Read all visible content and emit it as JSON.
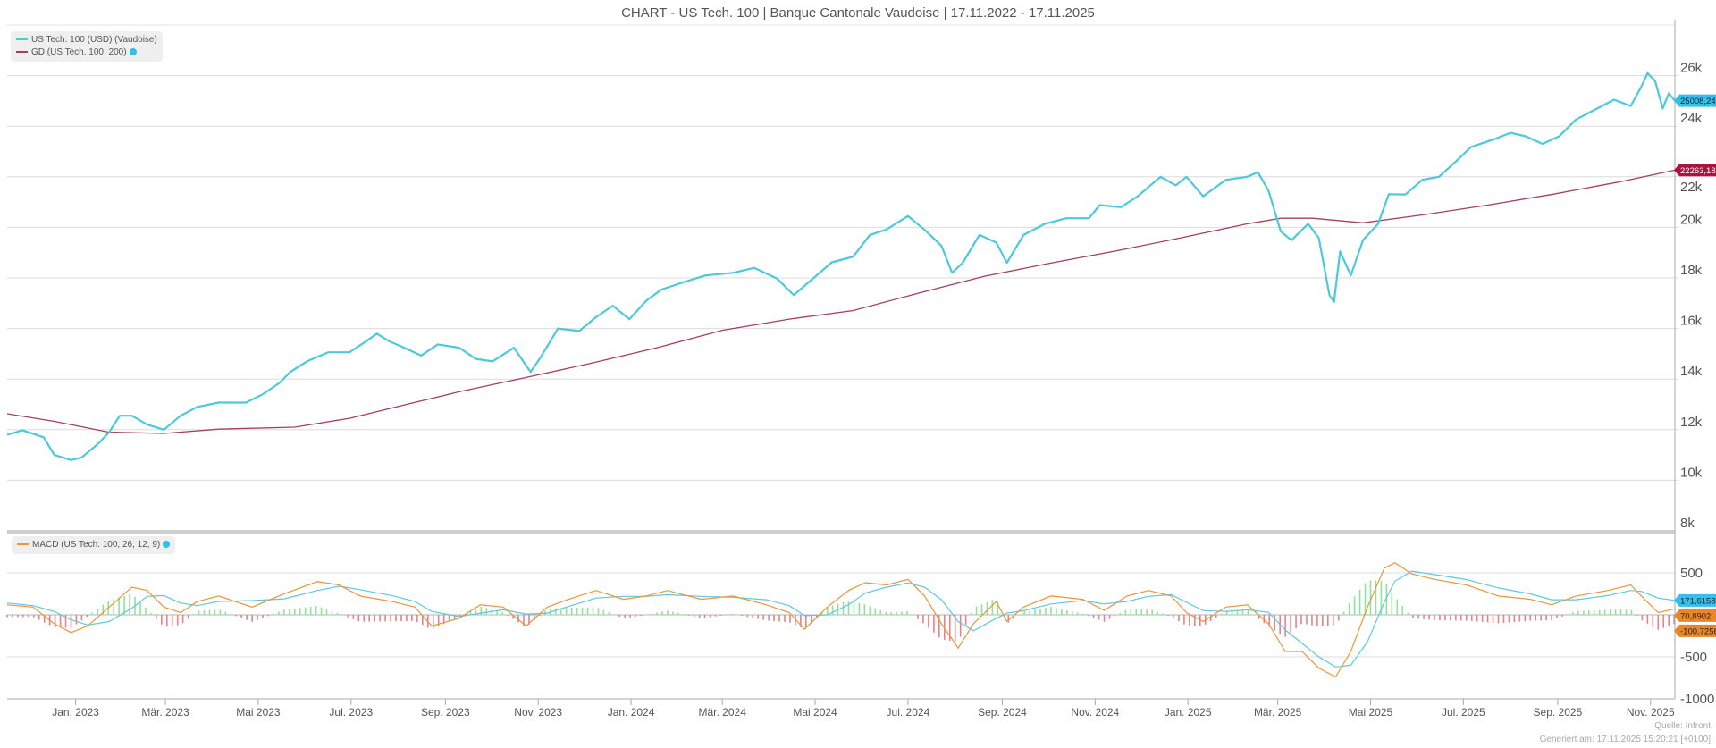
{
  "title": "CHART - US Tech. 100 | Banque Cantonale Vaudoise | 17.11.2022 - 17.11.2025",
  "legend_main": [
    {
      "label": "US Tech. 100 (USD) (Vaudoise)",
      "color": "#4cc9da"
    },
    {
      "label": "GD (US Tech. 100, 200)",
      "color": "#a3405f"
    }
  ],
  "legend_macd": {
    "label": "MACD (US Tech. 100, 26, 12, 9)",
    "color": "#e8963a"
  },
  "footer": {
    "source": "Quelle: Infront",
    "generated": "Generiert am: 17.11.2025 15:20:21 [+0100]"
  },
  "colors": {
    "price": "#4cc9da",
    "gd": "#a3405f",
    "macd": "#e8963a",
    "signal": "#5ec9de",
    "hist_pos": "#8fe39a",
    "hist_neg": "#e3838b",
    "tag_blue": "#36bfe8",
    "tag_red": "#a8153f",
    "tag_orange": "#e8862a",
    "grid": "#dcdcdc"
  },
  "chart_data": [
    {
      "type": "line",
      "title": "CHART - US Tech. 100 | Banque Cantonale Vaudoise | 17.11.2022 - 17.11.2025",
      "xlim": [
        "2022-11-17",
        "2025-11-17"
      ],
      "ylim": [
        8000,
        28000
      ],
      "grid": true,
      "legend": "top-left",
      "yticks": [
        8000,
        10000,
        12000,
        14000,
        16000,
        18000,
        20000,
        22000,
        24000,
        26000
      ],
      "ytick_labels": [
        "8k",
        "10k",
        "12k",
        "14k",
        "16k",
        "18k",
        "20k",
        "22k",
        "24k",
        "26k"
      ],
      "xticks": [
        "2023-01-01",
        "2023-03-01",
        "2023-05-01",
        "2023-07-01",
        "2023-09-01",
        "2023-11-01",
        "2024-01-01",
        "2024-03-01",
        "2024-05-01",
        "2024-07-01",
        "2024-09-01",
        "2024-11-01",
        "2025-01-01",
        "2025-03-01",
        "2025-05-01",
        "2025-07-01",
        "2025-09-01",
        "2025-11-01"
      ],
      "xtick_labels": [
        "Jan. 2023",
        "Mär. 2023",
        "Mai 2023",
        "Jul. 2023",
        "Sep. 2023",
        "Nov. 2023",
        "Jan. 2024",
        "Mär. 2024",
        "Mai 2024",
        "Jul. 2024",
        "Sep. 2024",
        "Nov. 2024",
        "Jan. 2025",
        "Mär. 2025",
        "Mai 2025",
        "Jul. 2025",
        "Sep. 2025",
        "Nov. 2025"
      ],
      "series": [
        {
          "name": "US Tech. 100 (USD) (Vaudoise)",
          "last_label": "25008,24",
          "points": [
            [
              "2022-11-17",
              11800
            ],
            [
              "2022-11-27",
              11980
            ],
            [
              "2022-12-11",
              11700
            ],
            [
              "2022-12-18",
              11000
            ],
            [
              "2022-12-29",
              10800
            ],
            [
              "2023-01-05",
              10900
            ],
            [
              "2023-01-16",
              11460
            ],
            [
              "2023-01-23",
              11900
            ],
            [
              "2023-01-30",
              12550
            ],
            [
              "2023-02-07",
              12550
            ],
            [
              "2023-02-17",
              12200
            ],
            [
              "2023-02-28",
              12000
            ],
            [
              "2023-03-11",
              12550
            ],
            [
              "2023-03-22",
              12900
            ],
            [
              "2023-04-05",
              13070
            ],
            [
              "2023-04-23",
              13070
            ],
            [
              "2023-05-04",
              13400
            ],
            [
              "2023-05-15",
              13850
            ],
            [
              "2023-05-22",
              14280
            ],
            [
              "2023-06-02",
              14700
            ],
            [
              "2023-06-16",
              15060
            ],
            [
              "2023-06-30",
              15060
            ],
            [
              "2023-07-11",
              15500
            ],
            [
              "2023-07-18",
              15800
            ],
            [
              "2023-07-26",
              15500
            ],
            [
              "2023-08-05",
              15240
            ],
            [
              "2023-08-16",
              14930
            ],
            [
              "2023-08-27",
              15370
            ],
            [
              "2023-09-10",
              15240
            ],
            [
              "2023-09-21",
              14800
            ],
            [
              "2023-10-02",
              14700
            ],
            [
              "2023-10-16",
              15240
            ],
            [
              "2023-10-27",
              14280
            ],
            [
              "2023-11-03",
              14900
            ],
            [
              "2023-11-14",
              16000
            ],
            [
              "2023-11-28",
              15900
            ],
            [
              "2023-12-09",
              16450
            ],
            [
              "2023-12-20",
              16900
            ],
            [
              "2023-12-31",
              16370
            ],
            [
              "2024-01-11",
              17100
            ],
            [
              "2024-01-21",
              17540
            ],
            [
              "2024-02-05",
              17840
            ],
            [
              "2024-02-19",
              18100
            ],
            [
              "2024-03-08",
              18200
            ],
            [
              "2024-03-22",
              18400
            ],
            [
              "2024-04-06",
              17970
            ],
            [
              "2024-04-17",
              17320
            ],
            [
              "2024-04-27",
              17840
            ],
            [
              "2024-05-12",
              18620
            ],
            [
              "2024-05-26",
              18840
            ],
            [
              "2024-06-06",
              19700
            ],
            [
              "2024-06-17",
              19920
            ],
            [
              "2024-07-01",
              20450
            ],
            [
              "2024-07-12",
              19900
            ],
            [
              "2024-07-23",
              19270
            ],
            [
              "2024-07-30",
              18200
            ],
            [
              "2024-08-06",
              18600
            ],
            [
              "2024-08-17",
              19700
            ],
            [
              "2024-08-28",
              19400
            ],
            [
              "2024-09-04",
              18600
            ],
            [
              "2024-09-15",
              19700
            ],
            [
              "2024-09-29",
              20140
            ],
            [
              "2024-10-13",
              20360
            ],
            [
              "2024-10-28",
              20360
            ],
            [
              "2024-11-04",
              20880
            ],
            [
              "2024-11-18",
              20800
            ],
            [
              "2024-11-29",
              21230
            ],
            [
              "2024-12-14",
              22000
            ],
            [
              "2024-12-24",
              21660
            ],
            [
              "2024-12-31",
              22000
            ],
            [
              "2025-01-11",
              21230
            ],
            [
              "2025-01-26",
              21880
            ],
            [
              "2025-02-09",
              22000
            ],
            [
              "2025-02-16",
              22180
            ],
            [
              "2025-02-23",
              21440
            ],
            [
              "2025-03-03",
              19840
            ],
            [
              "2025-03-10",
              19490
            ],
            [
              "2025-03-21",
              20140
            ],
            [
              "2025-03-28",
              19580
            ],
            [
              "2025-04-04",
              17320
            ],
            [
              "2025-04-07",
              17050
            ],
            [
              "2025-04-11",
              19050
            ],
            [
              "2025-04-18",
              18100
            ],
            [
              "2025-04-26",
              19490
            ],
            [
              "2025-05-06",
              20140
            ],
            [
              "2025-05-13",
              21310
            ],
            [
              "2025-05-24",
              21300
            ],
            [
              "2025-06-04",
              21880
            ],
            [
              "2025-06-15",
              22000
            ],
            [
              "2025-06-26",
              22600
            ],
            [
              "2025-07-06",
              23180
            ],
            [
              "2025-07-21",
              23480
            ],
            [
              "2025-08-01",
              23740
            ],
            [
              "2025-08-11",
              23600
            ],
            [
              "2025-08-22",
              23300
            ],
            [
              "2025-09-02",
              23600
            ],
            [
              "2025-09-13",
              24260
            ],
            [
              "2025-09-27",
              24700
            ],
            [
              "2025-10-08",
              25050
            ],
            [
              "2025-10-19",
              24800
            ],
            [
              "2025-10-26",
              25570
            ],
            [
              "2025-10-30",
              26100
            ],
            [
              "2025-11-04",
              25780
            ],
            [
              "2025-11-09",
              24700
            ],
            [
              "2025-11-13",
              25300
            ],
            [
              "2025-11-17",
              25008.24
            ]
          ]
        },
        {
          "name": "GD (US Tech. 100, 200)",
          "last_label": "22263,18",
          "points": [
            [
              "2022-11-17",
              12630
            ],
            [
              "2022-12-18",
              12330
            ],
            [
              "2023-01-23",
              11900
            ],
            [
              "2023-02-28",
              11850
            ],
            [
              "2023-04-05",
              12020
            ],
            [
              "2023-05-25",
              12100
            ],
            [
              "2023-06-30",
              12450
            ],
            [
              "2023-08-05",
              12980
            ],
            [
              "2023-09-10",
              13500
            ],
            [
              "2023-10-24",
              14065
            ],
            [
              "2023-12-06",
              14630
            ],
            [
              "2024-01-18",
              15240
            ],
            [
              "2024-03-01",
              15930
            ],
            [
              "2024-04-14",
              16370
            ],
            [
              "2024-05-26",
              16710
            ],
            [
              "2024-07-08",
              17400
            ],
            [
              "2024-08-20",
              18060
            ],
            [
              "2024-10-02",
              18580
            ],
            [
              "2024-11-14",
              19060
            ],
            [
              "2024-12-27",
              19580
            ],
            [
              "2025-02-09",
              20140
            ],
            [
              "2025-03-03",
              20360
            ],
            [
              "2025-03-24",
              20360
            ],
            [
              "2025-04-26",
              20180
            ],
            [
              "2025-06-04",
              20490
            ],
            [
              "2025-07-17",
              20880
            ],
            [
              "2025-08-29",
              21310
            ],
            [
              "2025-10-11",
              21790
            ],
            [
              "2025-11-17",
              22263.18
            ]
          ]
        }
      ]
    },
    {
      "type": "line",
      "xlim": [
        "2022-11-17",
        "2025-11-17"
      ],
      "ylim": [
        -1000,
        936
      ],
      "grid": true,
      "legend": "top-left",
      "yticks": [
        -1000,
        -500,
        500
      ],
      "ytick_labels": [
        "-1000",
        "-500",
        "500"
      ],
      "dates": [
        "2022-11-17",
        "2022-12-04",
        "2022-12-18",
        "2022-12-29",
        "2023-01-09",
        "2023-01-23",
        "2023-02-07",
        "2023-02-17",
        "2023-02-28",
        "2023-03-11",
        "2023-03-22",
        "2023-04-05",
        "2023-04-27",
        "2023-05-18",
        "2023-06-09",
        "2023-06-23",
        "2023-07-07",
        "2023-07-28",
        "2023-08-12",
        "2023-08-23",
        "2023-09-10",
        "2023-09-24",
        "2023-10-09",
        "2023-10-24",
        "2023-11-07",
        "2023-11-21",
        "2023-12-09",
        "2023-12-27",
        "2024-01-11",
        "2024-01-25",
        "2024-02-16",
        "2024-03-08",
        "2024-03-30",
        "2024-04-14",
        "2024-04-24",
        "2024-05-09",
        "2024-05-23",
        "2024-06-03",
        "2024-06-17",
        "2024-07-01",
        "2024-07-12",
        "2024-07-23",
        "2024-08-03",
        "2024-08-13",
        "2024-08-28",
        "2024-09-04",
        "2024-09-15",
        "2024-10-03",
        "2024-10-24",
        "2024-11-07",
        "2024-11-22",
        "2024-12-06",
        "2024-12-21",
        "2024-12-31",
        "2025-01-11",
        "2025-01-26",
        "2025-02-09",
        "2025-02-23",
        "2025-03-06",
        "2025-03-17",
        "2025-03-28",
        "2025-04-08",
        "2025-04-18",
        "2025-04-29",
        "2025-05-10",
        "2025-05-17",
        "2025-05-28",
        "2025-06-12",
        "2025-07-03",
        "2025-07-24",
        "2025-08-14",
        "2025-08-28",
        "2025-09-13",
        "2025-10-04",
        "2025-10-19",
        "2025-10-26",
        "2025-11-06",
        "2025-11-17"
      ],
      "series": [
        {
          "name": "MACD (US Tech. 100, 26, 12, 9)",
          "last_label": "70,8902",
          "values": [
            119,
            92,
            -106,
            -211,
            -132,
            92,
            330,
            290,
            92,
            26,
            158,
            224,
            92,
            251,
            396,
            356,
            224,
            158,
            92,
            -132,
            -40,
            119,
            92,
            -132,
            92,
            185,
            290,
            185,
            224,
            290,
            185,
            224,
            119,
            26,
            -172,
            92,
            290,
            383,
            356,
            422,
            224,
            -106,
            -396,
            -106,
            158,
            -79,
            92,
            224,
            185,
            53,
            224,
            290,
            224,
            26,
            -79,
            92,
            119,
            -106,
            -436,
            -436,
            -634,
            -739,
            -436,
            92,
            554,
            620,
            488,
            422,
            356,
            224,
            185,
            119,
            224,
            290,
            356,
            224,
            26,
            70.8902
          ]
        },
        {
          "last_label": "171,6158",
          "values": [
            140,
            110,
            40,
            -60,
            -120,
            -80,
            80,
            220,
            230,
            140,
            110,
            160,
            170,
            190,
            290,
            340,
            300,
            230,
            160,
            40,
            -20,
            20,
            60,
            10,
            20,
            100,
            200,
            220,
            220,
            240,
            220,
            210,
            180,
            110,
            -10,
            0,
            120,
            260,
            330,
            380,
            330,
            180,
            -80,
            -190,
            -40,
            20,
            50,
            130,
            170,
            130,
            160,
            220,
            240,
            150,
            50,
            40,
            60,
            30,
            -180,
            -340,
            -500,
            -620,
            -600,
            -320,
            150,
            400,
            520,
            480,
            420,
            320,
            250,
            180,
            180,
            230,
            290,
            280,
            200,
            171.6158
          ]
        }
      ],
      "histogram_last_label": "-100,7256"
    }
  ]
}
